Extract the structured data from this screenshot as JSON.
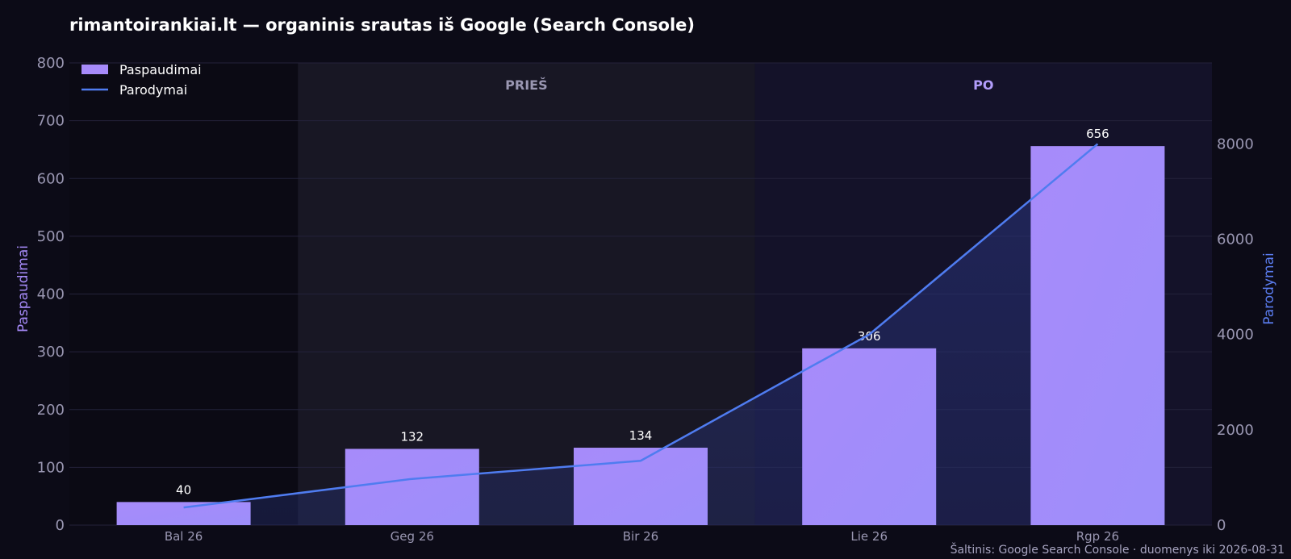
{
  "chart_data": {
    "type": "bar",
    "title": "rimantoirankiai.lt — organinis srautas iš Google (Search Console)",
    "categories": [
      "Bal 26",
      "Geg 26",
      "Bir 26",
      "Lie 26",
      "Rgp 26"
    ],
    "series": [
      {
        "name": "Paspaudimai",
        "type": "bar",
        "axis": "left",
        "values": [
          40,
          132,
          134,
          306,
          656
        ],
        "color": "#a78bfa"
      },
      {
        "name": "Parodymai",
        "type": "line",
        "axis": "right",
        "values": [
          370,
          970,
          1350,
          4000,
          8000
        ],
        "color": "#4f7cf0"
      }
    ],
    "ylabel": "Paspaudimai",
    "y2label": "Parodymai",
    "ylim": [
      0,
      800
    ],
    "y2lim": [
      0,
      9700
    ],
    "yticks": [
      0,
      100,
      200,
      300,
      400,
      500,
      600,
      700,
      800
    ],
    "y2ticks": [
      0,
      2000,
      4000,
      6000,
      8000
    ],
    "regions": [
      {
        "label": "PRIEŠ",
        "from": "Geg 26",
        "to": "Bir 26",
        "color": "#9a97b2"
      },
      {
        "label": "PO",
        "from": "Lie 26",
        "to": "Rgp 26",
        "color": "#b29dfb"
      }
    ],
    "grid": true,
    "legend": "top-left"
  },
  "source_note": "Šaltinis: Google Search Console · duomenys iki 2026-08-31"
}
